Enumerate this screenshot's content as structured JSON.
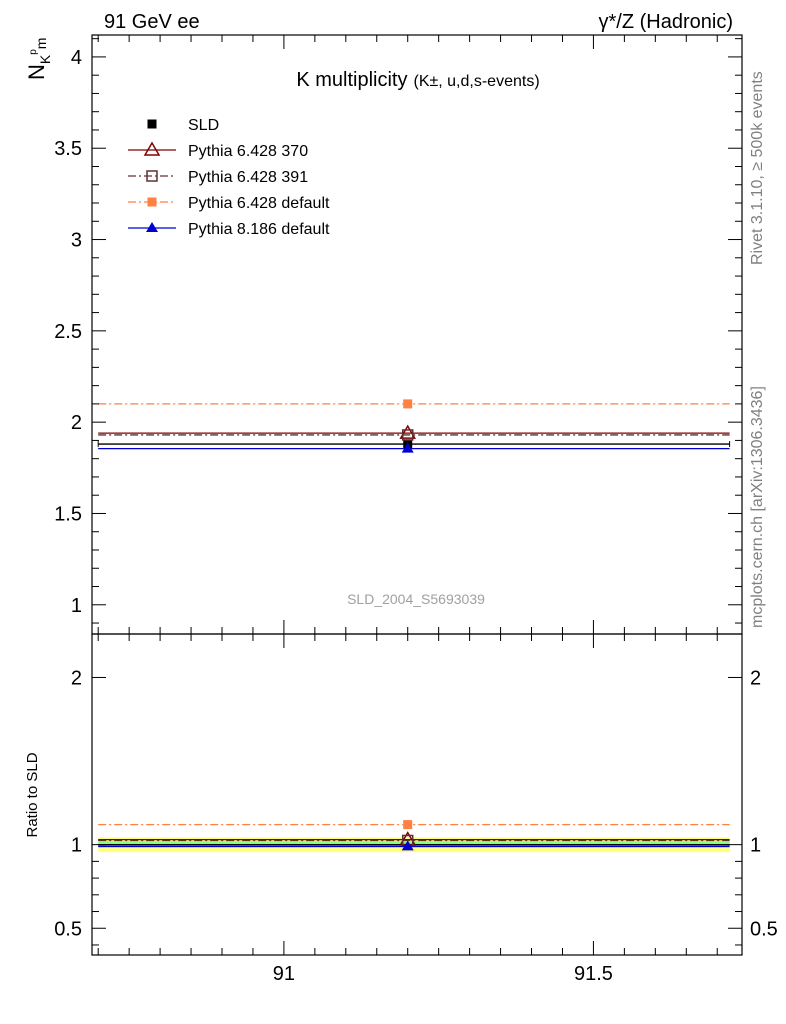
{
  "header": {
    "left": "91 GeV ee",
    "right": "γ*/Z (Hadronic)"
  },
  "side_labels": {
    "top": "Rivet 3.1.10, ≥ 500k events",
    "bottom": "mcplots.cern.ch [arXiv:1306.3436]"
  },
  "colors": {
    "data": "#000000",
    "p370": "#800000",
    "p391": "#603030",
    "pdef": "#ff8040",
    "p8": "#0000d0",
    "band_inner": "#80ff80",
    "band_outer": "#ffff80"
  },
  "chart_data": [
    {
      "type": "scatter",
      "panel": "main",
      "title": "K multiplicity",
      "title_suffix": "(K±, u,d,s-events)",
      "ylabel_main": "N",
      "ylabel_sub": "K",
      "ylabel_sup": "p",
      "ylabel_sub2": "m",
      "xlim": [
        90.69,
        91.74
      ],
      "ylim": [
        0.84,
        4.12
      ],
      "yticks": [
        1,
        1.5,
        2,
        2.5,
        3,
        3.5,
        4
      ],
      "ytick_labels": [
        "1",
        "1.5",
        "2",
        "2.5",
        "3",
        "3.5",
        "4"
      ],
      "xticks": [
        91,
        91.5
      ],
      "xtick_labels": [
        "91",
        "91.5"
      ],
      "watermark": "SLD_2004_S5693039",
      "series": [
        {
          "name": "SLD",
          "key": "data",
          "x": 91.2,
          "xerr": [
            90.7,
            91.72
          ],
          "y": 1.88,
          "marker": "square-filled",
          "style": "none"
        },
        {
          "name": "Pythia 6.428 370",
          "key": "p370",
          "x": 91.2,
          "xerr": [
            90.7,
            91.72
          ],
          "y": 1.94,
          "marker": "triangle-open",
          "style": "solid"
        },
        {
          "name": "Pythia 6.428 391",
          "key": "p391",
          "x": 91.2,
          "xerr": [
            90.7,
            91.72
          ],
          "y": 1.93,
          "marker": "square-open",
          "style": "dashdot"
        },
        {
          "name": "Pythia 6.428 default",
          "key": "pdef",
          "x": 91.2,
          "xerr": [
            90.7,
            91.72
          ],
          "y": 2.1,
          "marker": "square-filled",
          "style": "dashdot"
        },
        {
          "name": "Pythia 8.186 default",
          "key": "p8",
          "x": 91.2,
          "xerr": [
            90.7,
            91.72
          ],
          "y": 1.855,
          "marker": "triangle-filled",
          "style": "solid"
        }
      ]
    },
    {
      "type": "scatter",
      "panel": "ratio",
      "ylabel": "Ratio to SLD",
      "ylim": [
        0.34,
        2.26
      ],
      "yticks": [
        0.5,
        1,
        2
      ],
      "ytick_labels": [
        "0.5",
        "1",
        "2"
      ],
      "band_inner": [
        0.98,
        1.02
      ],
      "band_outer": [
        0.955,
        1.045
      ],
      "series": [
        {
          "key": "p370",
          "y": 1.03,
          "marker": "triangle-open",
          "style": "solid"
        },
        {
          "key": "p391",
          "y": 1.025,
          "marker": "square-open",
          "style": "dashdot"
        },
        {
          "key": "pdef",
          "y": 1.12,
          "marker": "square-filled",
          "style": "dashdot"
        },
        {
          "key": "p8",
          "y": 0.99,
          "marker": "triangle-filled",
          "style": "solid"
        }
      ]
    }
  ]
}
